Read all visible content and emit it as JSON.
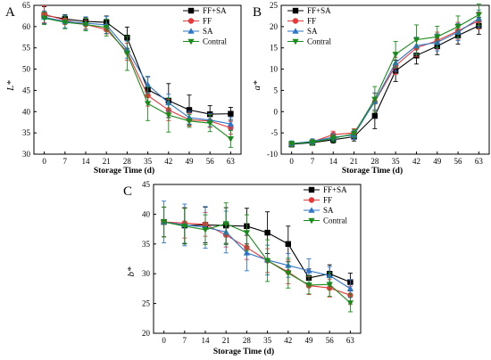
{
  "colors": {
    "FF+SA": "#000000",
    "FF": "#e8393a",
    "SA": "#2e74c9",
    "Contral": "#1a8a1a"
  },
  "chart_data": [
    {
      "panel": "A",
      "type": "line",
      "ylabel": "L*",
      "xlabel": "Storage Time (d)",
      "x": [
        0,
        7,
        14,
        21,
        28,
        35,
        42,
        49,
        56,
        63
      ],
      "xticks": [
        "0",
        "7",
        "14",
        "21",
        "28",
        "35",
        "42",
        "49",
        "56",
        "63"
      ],
      "ylim": [
        30,
        65
      ],
      "yticks": [
        30,
        35,
        40,
        45,
        50,
        55,
        60,
        65
      ],
      "legend": "top-right",
      "series": [
        {
          "name": "FF+SA",
          "marker": "square",
          "values": [
            62.7,
            61.8,
            61.2,
            61.0,
            57.4,
            45.2,
            42.6,
            40.4,
            39.4,
            39.5
          ],
          "errors": [
            2.0,
            1.0,
            1.0,
            1.5,
            2.5,
            3.0,
            4.0,
            3.5,
            2.0,
            1.5
          ]
        },
        {
          "name": "FF",
          "marker": "circle",
          "values": [
            62.9,
            61.5,
            60.5,
            59.3,
            54.1,
            43.8,
            40.4,
            38.1,
            37.8,
            36.2
          ],
          "errors": [
            2.0,
            1.0,
            1.0,
            1.0,
            2.0,
            2.5,
            2.5,
            1.5,
            1.5,
            1.5
          ]
        },
        {
          "name": "SA",
          "marker": "triangle-up",
          "values": [
            62.2,
            61.2,
            60.8,
            60.4,
            54.6,
            46.3,
            42.1,
            38.6,
            38.0,
            37.1
          ],
          "errors": [
            1.5,
            1.5,
            1.5,
            2.0,
            2.0,
            2.0,
            2.0,
            1.5,
            1.5,
            1.5
          ]
        },
        {
          "name": "Contral",
          "marker": "triangle-down",
          "values": [
            62.0,
            61.0,
            60.5,
            59.8,
            53.7,
            41.9,
            39.2,
            37.8,
            37.3,
            33.6
          ],
          "errors": [
            1.5,
            1.5,
            1.5,
            2.0,
            4.0,
            4.0,
            4.0,
            1.5,
            2.0,
            2.0
          ]
        }
      ]
    },
    {
      "panel": "B",
      "type": "line",
      "ylabel": "a*",
      "xlabel": "Storage Time (d)",
      "x": [
        0,
        7,
        14,
        21,
        28,
        35,
        42,
        49,
        56,
        63
      ],
      "xticks": [
        "0",
        "7",
        "14",
        "21",
        "28",
        "35",
        "42",
        "49",
        "56",
        "63"
      ],
      "ylim": [
        -10,
        25
      ],
      "yticks": [
        -10,
        -5,
        0,
        5,
        10,
        15,
        20,
        25
      ],
      "legend": "top-left",
      "series": [
        {
          "name": "FF+SA",
          "marker": "square",
          "values": [
            -7.7,
            -7.3,
            -6.6,
            -5.9,
            -1.0,
            9.6,
            13.2,
            15.4,
            17.9,
            20.2
          ],
          "errors": [
            0.6,
            0.6,
            0.8,
            1.0,
            3.0,
            2.5,
            2.0,
            2.0,
            2.0,
            2.0
          ]
        },
        {
          "name": "FF",
          "marker": "circle",
          "values": [
            -7.6,
            -7.1,
            -5.4,
            -5.0,
            2.3,
            10.8,
            15.0,
            16.7,
            19.0,
            21.4
          ],
          "errors": [
            0.6,
            0.6,
            0.8,
            1.0,
            2.0,
            2.0,
            2.0,
            2.0,
            2.0,
            2.0
          ]
        },
        {
          "name": "SA",
          "marker": "triangle-up",
          "values": [
            -7.5,
            -7.0,
            -6.0,
            -5.5,
            2.4,
            11.5,
            15.5,
            16.3,
            18.7,
            21.9
          ],
          "errors": [
            0.6,
            0.6,
            0.8,
            1.0,
            2.0,
            2.0,
            2.0,
            2.0,
            2.0,
            2.0
          ]
        },
        {
          "name": "Contral",
          "marker": "triangle-down",
          "values": [
            -7.6,
            -7.2,
            -6.3,
            -5.2,
            2.9,
            13.5,
            16.9,
            17.6,
            20.0,
            22.8
          ],
          "errors": [
            0.6,
            0.6,
            0.8,
            1.0,
            3.0,
            3.0,
            3.5,
            2.5,
            2.5,
            2.5
          ]
        }
      ]
    },
    {
      "panel": "C",
      "type": "line",
      "ylabel": "b*",
      "xlabel": "Storage Time (d)",
      "x": [
        0,
        7,
        14,
        21,
        28,
        35,
        42,
        49,
        56,
        63
      ],
      "xticks": [
        "0",
        "7",
        "14",
        "21",
        "28",
        "35",
        "42",
        "49",
        "56",
        "63"
      ],
      "ylim": [
        20,
        45
      ],
      "yticks": [
        20,
        25,
        30,
        35,
        40,
        45
      ],
      "legend": "top-right",
      "series": [
        {
          "name": "FF+SA",
          "marker": "square",
          "values": [
            38.7,
            38.1,
            38.2,
            38.1,
            38.0,
            36.9,
            35.0,
            29.3,
            30.0,
            28.6
          ],
          "errors": [
            2.5,
            3.0,
            3.0,
            3.0,
            3.0,
            3.5,
            3.0,
            1.5,
            1.5,
            1.5
          ]
        },
        {
          "name": "FF",
          "marker": "circle",
          "values": [
            38.7,
            38.5,
            38.3,
            36.5,
            34.4,
            32.2,
            30.3,
            28.0,
            27.6,
            26.4
          ],
          "errors": [
            2.5,
            2.5,
            2.0,
            2.0,
            2.0,
            2.0,
            2.0,
            1.5,
            1.5,
            1.5
          ]
        },
        {
          "name": "SA",
          "marker": "triangle-up",
          "values": [
            38.7,
            38.2,
            37.8,
            37.0,
            33.5,
            32.3,
            31.4,
            30.5,
            29.7,
            27.5
          ],
          "errors": [
            3.5,
            3.5,
            3.5,
            3.5,
            3.0,
            2.5,
            2.0,
            2.0,
            1.5,
            1.5
          ]
        },
        {
          "name": "Contral",
          "marker": "triangle-down",
          "values": [
            38.7,
            38.0,
            37.4,
            38.4,
            36.9,
            32.2,
            30.1,
            28.1,
            28.2,
            25.1
          ],
          "errors": [
            2.5,
            3.0,
            2.5,
            3.5,
            3.0,
            3.5,
            2.5,
            1.5,
            2.0,
            1.5
          ]
        }
      ]
    }
  ]
}
